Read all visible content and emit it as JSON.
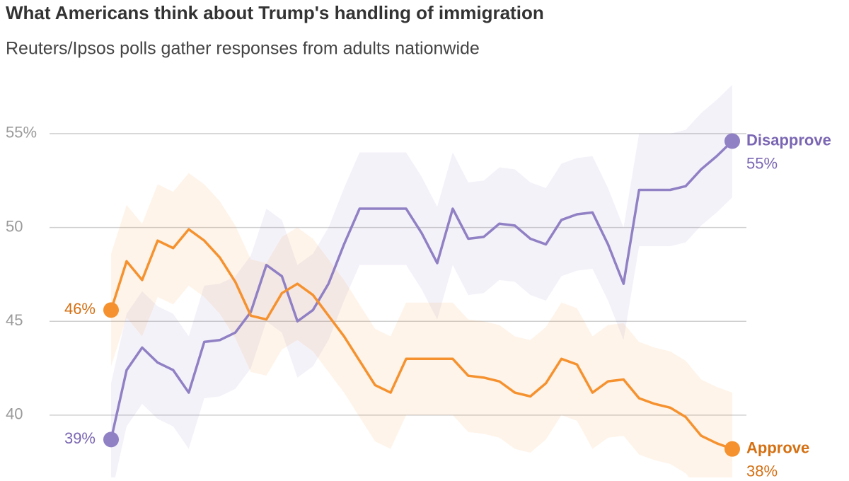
{
  "chart_data": {
    "type": "line",
    "title": "What Americans think about Trump's handling of immigration",
    "subtitle": "Reuters/Ipsos polls gather responses from adults nationwide",
    "ylim": [
      37,
      58.2
    ],
    "yticks": [
      {
        "value": 55,
        "label": "55%"
      },
      50,
      45,
      40
    ],
    "grid": true,
    "series": [
      {
        "name": "Disapprove",
        "color": "#9080c4",
        "label_color": "#7a66b3",
        "error": 3,
        "values": [
          38.7,
          42.4,
          43.6,
          42.8,
          42.4,
          41.2,
          43.9,
          44.0,
          44.4,
          45.5,
          48.0,
          47.4,
          45.0,
          45.6,
          47.0,
          49.1,
          51.0,
          51.0,
          51.0,
          51.0,
          49.7,
          48.1,
          51.0,
          49.4,
          49.5,
          50.2,
          50.1,
          49.4,
          49.1,
          50.4,
          50.7,
          50.8,
          49.1,
          47.0,
          52.0,
          52.0,
          52.0,
          52.2,
          53.1,
          53.8,
          54.6
        ],
        "value_labels": [
          "39%",
          null,
          null,
          null,
          null,
          null,
          null,
          null,
          null,
          null,
          null,
          null,
          null,
          null,
          null,
          null,
          null,
          null,
          null,
          null,
          null,
          null,
          null,
          null,
          null,
          null,
          null,
          null,
          null,
          null,
          null,
          null,
          null,
          null,
          null,
          null,
          null,
          null,
          null,
          null,
          "55%"
        ]
      },
      {
        "name": "Approve",
        "color": "#f5922f",
        "label_color": "#d46f12",
        "error": 3,
        "values": [
          45.6,
          48.2,
          47.2,
          49.3,
          48.9,
          49.9,
          49.3,
          48.4,
          47.1,
          45.3,
          45.1,
          46.5,
          47.0,
          46.4,
          45.3,
          44.2,
          42.9,
          41.6,
          41.2,
          43.0,
          43.0,
          43.0,
          43.0,
          42.1,
          42.0,
          41.8,
          41.2,
          41.0,
          41.7,
          43.0,
          42.7,
          41.2,
          41.8,
          41.9,
          40.9,
          40.6,
          40.4,
          39.9,
          38.9,
          38.5,
          38.2
        ],
        "value_labels": [
          "46%",
          null,
          null,
          null,
          null,
          null,
          null,
          null,
          null,
          null,
          null,
          null,
          null,
          null,
          null,
          null,
          null,
          null,
          null,
          null,
          null,
          null,
          null,
          null,
          null,
          null,
          null,
          null,
          null,
          null,
          null,
          null,
          null,
          null,
          null,
          null,
          null,
          null,
          null,
          null,
          "38%"
        ]
      }
    ]
  }
}
